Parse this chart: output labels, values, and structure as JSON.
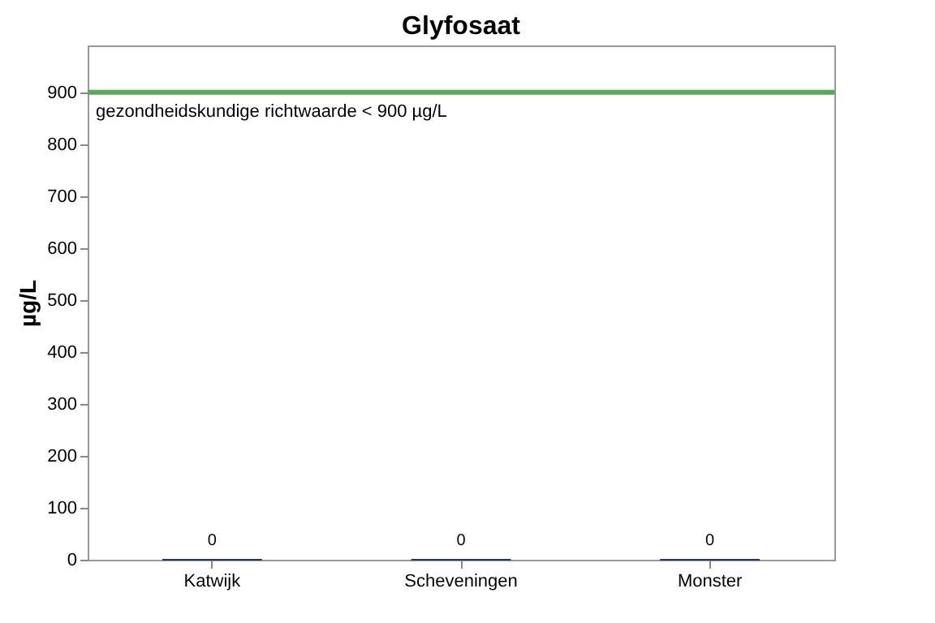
{
  "chart_data": {
    "type": "bar",
    "title": "Glyfosaat",
    "ylabel": "µg/L",
    "categories": [
      "Katwijk",
      "Scheveningen",
      "Monster"
    ],
    "values": [
      0,
      0,
      0
    ],
    "color": "#1f3864",
    "data_labels": true,
    "ylim": [
      0,
      990
    ],
    "yticks": [
      0,
      100,
      200,
      300,
      400,
      500,
      600,
      700,
      800,
      900
    ],
    "grid": false,
    "ref_lines": [
      {
        "axis": "y",
        "value": 900,
        "label": "gezondheidskundige richtwaarde < 900 µg/L",
        "color": "#5aa85a",
        "line_style": "solid"
      }
    ]
  }
}
